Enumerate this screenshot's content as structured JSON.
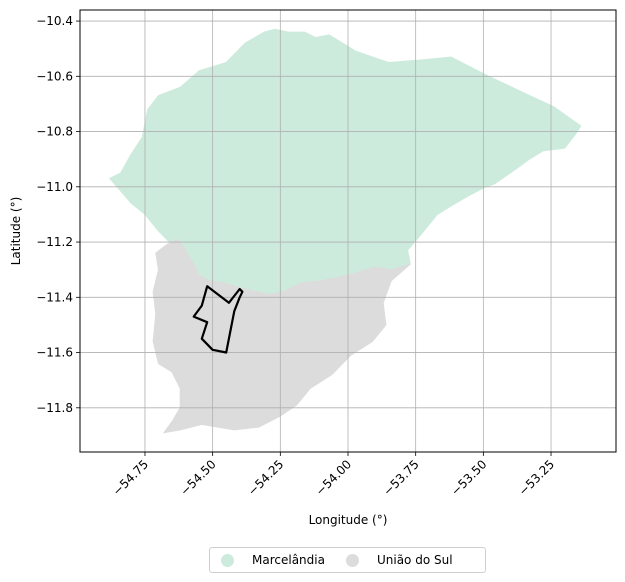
{
  "map": {
    "xlabel": "Longitude (°)",
    "ylabel": "Latitude (°)",
    "x_ticks": [
      -54.75,
      -54.5,
      -54.25,
      -54.0,
      -53.75,
      -53.5,
      -53.25
    ],
    "x_tick_labels": [
      "−54.75",
      "−54.50",
      "−54.25",
      "−54.00",
      "−53.75",
      "−53.50",
      "−53.25"
    ],
    "y_ticks": [
      -10.4,
      -10.6,
      -10.8,
      -11.0,
      -11.2,
      -11.4,
      -11.6,
      -11.8
    ],
    "y_tick_labels": [
      "−10.4",
      "−10.6",
      "−10.8",
      "−11.0",
      "−11.2",
      "−11.4",
      "−11.6",
      "−11.8"
    ],
    "xlim": [
      -54.99,
      -53.01
    ],
    "ylim": [
      -11.96,
      -10.36
    ],
    "grid": true,
    "legend_placement": "bottom-center",
    "regions": [
      {
        "name": "Marcelândia",
        "color": "#cdebdc",
        "outline": [
          [
            -54.88,
            -10.97
          ],
          [
            -54.84,
            -10.95
          ],
          [
            -54.8,
            -10.88
          ],
          [
            -54.76,
            -10.82
          ],
          [
            -54.74,
            -10.72
          ],
          [
            -54.7,
            -10.67
          ],
          [
            -54.62,
            -10.64
          ],
          [
            -54.55,
            -10.58
          ],
          [
            -54.45,
            -10.55
          ],
          [
            -54.38,
            -10.48
          ],
          [
            -54.31,
            -10.44
          ],
          [
            -54.27,
            -10.43
          ],
          [
            -54.22,
            -10.44
          ],
          [
            -54.16,
            -10.44
          ],
          [
            -54.12,
            -10.46
          ],
          [
            -54.07,
            -10.45
          ],
          [
            -53.97,
            -10.51
          ],
          [
            -53.85,
            -10.55
          ],
          [
            -53.72,
            -10.54
          ],
          [
            -53.62,
            -10.53
          ],
          [
            -53.48,
            -10.6
          ],
          [
            -53.35,
            -10.66
          ],
          [
            -53.24,
            -10.71
          ],
          [
            -53.14,
            -10.78
          ],
          [
            -53.16,
            -10.81
          ],
          [
            -53.2,
            -10.86
          ],
          [
            -53.28,
            -10.87
          ],
          [
            -53.33,
            -10.9
          ],
          [
            -53.4,
            -10.95
          ],
          [
            -53.46,
            -10.99
          ],
          [
            -53.49,
            -11.0
          ],
          [
            -53.55,
            -11.03
          ],
          [
            -53.62,
            -11.07
          ],
          [
            -53.67,
            -11.1
          ],
          [
            -53.72,
            -11.16
          ],
          [
            -53.78,
            -11.23
          ],
          [
            -53.77,
            -11.28
          ],
          [
            -53.84,
            -11.3
          ],
          [
            -53.9,
            -11.29
          ],
          [
            -54.0,
            -11.32
          ],
          [
            -54.1,
            -11.34
          ],
          [
            -54.18,
            -11.35
          ],
          [
            -54.24,
            -11.38
          ],
          [
            -54.29,
            -11.39
          ],
          [
            -54.38,
            -11.37
          ],
          [
            -54.45,
            -11.35
          ],
          [
            -54.51,
            -11.34
          ],
          [
            -54.56,
            -11.31
          ],
          [
            -54.58,
            -11.26
          ],
          [
            -54.62,
            -11.22
          ],
          [
            -54.66,
            -11.2
          ],
          [
            -54.7,
            -11.16
          ],
          [
            -54.75,
            -11.1
          ],
          [
            -54.8,
            -11.06
          ]
        ]
      },
      {
        "name": "União do Sul",
        "color": "#dcdcdc",
        "outline": [
          [
            -54.63,
            -11.19
          ],
          [
            -54.6,
            -11.23
          ],
          [
            -54.57,
            -11.28
          ],
          [
            -54.55,
            -11.32
          ],
          [
            -54.51,
            -11.34
          ],
          [
            -54.45,
            -11.35
          ],
          [
            -54.38,
            -11.37
          ],
          [
            -54.29,
            -11.39
          ],
          [
            -54.24,
            -11.38
          ],
          [
            -54.18,
            -11.35
          ],
          [
            -54.1,
            -11.34
          ],
          [
            -54.0,
            -11.32
          ],
          [
            -53.9,
            -11.29
          ],
          [
            -53.84,
            -11.3
          ],
          [
            -53.77,
            -11.28
          ],
          [
            -53.84,
            -11.34
          ],
          [
            -53.87,
            -11.42
          ],
          [
            -53.86,
            -11.5
          ],
          [
            -53.91,
            -11.56
          ],
          [
            -53.99,
            -11.61
          ],
          [
            -54.06,
            -11.68
          ],
          [
            -54.14,
            -11.73
          ],
          [
            -54.19,
            -11.79
          ],
          [
            -54.25,
            -11.83
          ],
          [
            -54.33,
            -11.87
          ],
          [
            -54.42,
            -11.88
          ],
          [
            -54.54,
            -11.86
          ],
          [
            -54.62,
            -11.88
          ],
          [
            -54.68,
            -11.89
          ],
          [
            -54.65,
            -11.85
          ],
          [
            -54.62,
            -11.8
          ],
          [
            -54.62,
            -11.73
          ],
          [
            -54.65,
            -11.67
          ],
          [
            -54.7,
            -11.64
          ],
          [
            -54.72,
            -11.56
          ],
          [
            -54.71,
            -11.46
          ],
          [
            -54.72,
            -11.38
          ],
          [
            -54.7,
            -11.3
          ],
          [
            -54.71,
            -11.24
          ],
          [
            -54.67,
            -11.21
          ]
        ]
      }
    ],
    "highlight_outline": [
      [
        -54.52,
        -11.36
      ],
      [
        -54.44,
        -11.42
      ],
      [
        -54.4,
        -11.37
      ],
      [
        -54.39,
        -11.38
      ],
      [
        -54.4,
        -11.4
      ],
      [
        -54.42,
        -11.45
      ],
      [
        -54.44,
        -11.55
      ],
      [
        -54.45,
        -11.6
      ],
      [
        -54.5,
        -11.59
      ],
      [
        -54.54,
        -11.55
      ],
      [
        -54.52,
        -11.49
      ],
      [
        -54.57,
        -11.47
      ],
      [
        -54.54,
        -11.43
      ]
    ]
  },
  "legend": {
    "items": [
      {
        "label": "Marcelândia",
        "color": "#cdebdc"
      },
      {
        "label": "União do Sul",
        "color": "#dcdcdc"
      }
    ]
  }
}
